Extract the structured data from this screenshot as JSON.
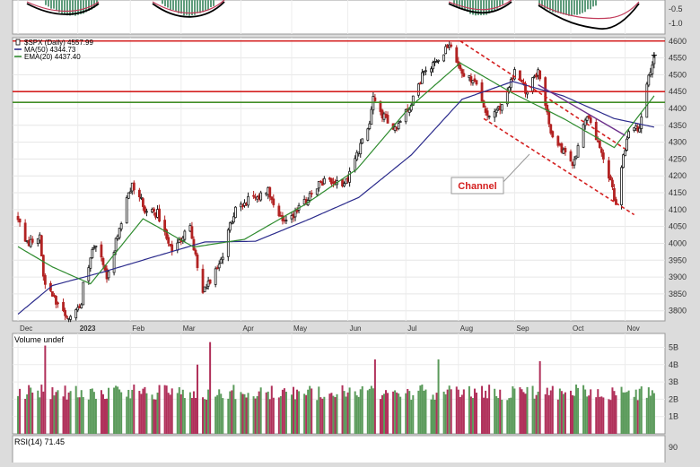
{
  "chart_data": {
    "type": "candlestick",
    "title": "$SPX (Daily) 4557.99",
    "price_axis": {
      "ticks": [
        3800,
        3850,
        3900,
        3950,
        4000,
        4050,
        4100,
        4150,
        4200,
        4250,
        4300,
        4350,
        4400,
        4450,
        4500,
        4550,
        4600
      ],
      "range": [
        3770,
        4610
      ]
    },
    "months": [
      {
        "label": "Dec",
        "date": "2022-12-01"
      },
      {
        "label": "2023",
        "date": "2023-01-03",
        "bold": true
      },
      {
        "label": "Feb",
        "date": "2023-02-01"
      },
      {
        "label": "Mar",
        "date": "2023-03-01"
      },
      {
        "label": "Apr",
        "date": "2023-04-03"
      },
      {
        "label": "May",
        "date": "2023-05-01"
      },
      {
        "label": "Jun",
        "date": "2023-06-01"
      },
      {
        "label": "Jul",
        "date": "2023-07-03"
      },
      {
        "label": "Aug",
        "date": "2023-08-01"
      },
      {
        "label": "Sep",
        "date": "2023-09-01"
      },
      {
        "label": "Oct",
        "date": "2023-10-02"
      },
      {
        "label": "Nov",
        "date": "2023-11-01"
      }
    ],
    "legend": [
      {
        "text": "$SPX (Daily) 4557.99",
        "color": "#000000",
        "swatch": "candle"
      },
      {
        "text": "MA(50) 4344.73",
        "color": "#2b2b8c",
        "swatch": "line"
      },
      {
        "text": "EMA(20) 4437.40",
        "color": "#2e8b2e",
        "swatch": "line"
      }
    ],
    "series": [
      {
        "name": "$SPX (Daily)",
        "kind": "price",
        "points": [
          {
            "x": "2022-12-01",
            "y": 4076
          },
          {
            "x": "2022-12-05",
            "y": 4000
          },
          {
            "x": "2022-12-13",
            "y": 4020
          },
          {
            "x": "2022-12-15",
            "y": 3900
          },
          {
            "x": "2022-12-22",
            "y": 3822
          },
          {
            "x": "2022-12-28",
            "y": 3783
          },
          {
            "x": "2023-01-05",
            "y": 3808
          },
          {
            "x": "2023-01-06",
            "y": 3895
          },
          {
            "x": "2023-01-13",
            "y": 3999
          },
          {
            "x": "2023-01-19",
            "y": 3898
          },
          {
            "x": "2023-01-27",
            "y": 4070
          },
          {
            "x": "2023-02-02",
            "y": 4179
          },
          {
            "x": "2023-02-10",
            "y": 4090
          },
          {
            "x": "2023-02-16",
            "y": 4090
          },
          {
            "x": "2023-02-24",
            "y": 3970
          },
          {
            "x": "2023-03-06",
            "y": 4048
          },
          {
            "x": "2023-03-13",
            "y": 3855
          },
          {
            "x": "2023-03-23",
            "y": 3950
          },
          {
            "x": "2023-03-31",
            "y": 4109
          },
          {
            "x": "2023-04-18",
            "y": 4154
          },
          {
            "x": "2023-04-25",
            "y": 4071
          },
          {
            "x": "2023-05-03",
            "y": 4090
          },
          {
            "x": "2023-05-19",
            "y": 4191
          },
          {
            "x": "2023-05-31",
            "y": 4179
          },
          {
            "x": "2023-06-12",
            "y": 4338
          },
          {
            "x": "2023-06-15",
            "y": 4425
          },
          {
            "x": "2023-06-26",
            "y": 4328
          },
          {
            "x": "2023-07-06",
            "y": 4411
          },
          {
            "x": "2023-07-13",
            "y": 4510
          },
          {
            "x": "2023-07-20",
            "y": 4534
          },
          {
            "x": "2023-07-27",
            "y": 4590
          },
          {
            "x": "2023-08-02",
            "y": 4513
          },
          {
            "x": "2023-08-11",
            "y": 4464
          },
          {
            "x": "2023-08-18",
            "y": 4370
          },
          {
            "x": "2023-08-25",
            "y": 4405
          },
          {
            "x": "2023-09-01",
            "y": 4515
          },
          {
            "x": "2023-09-07",
            "y": 4451
          },
          {
            "x": "2023-09-14",
            "y": 4505
          },
          {
            "x": "2023-09-21",
            "y": 4330
          },
          {
            "x": "2023-09-27",
            "y": 4274
          },
          {
            "x": "2023-10-03",
            "y": 4229
          },
          {
            "x": "2023-10-11",
            "y": 4377
          },
          {
            "x": "2023-10-19",
            "y": 4278
          },
          {
            "x": "2023-10-27",
            "y": 4117
          },
          {
            "x": "2023-11-02",
            "y": 4317
          },
          {
            "x": "2023-11-09",
            "y": 4347
          },
          {
            "x": "2023-11-14",
            "y": 4495
          },
          {
            "x": "2023-11-17",
            "y": 4557.99
          }
        ]
      },
      {
        "name": "MA(50)",
        "kind": "line",
        "color": "#2b2b8c",
        "points": [
          {
            "x": "2022-12-01",
            "y": 3790
          },
          {
            "x": "2022-12-20",
            "y": 3875
          },
          {
            "x": "2023-01-17",
            "y": 3915
          },
          {
            "x": "2023-02-14",
            "y": 3960
          },
          {
            "x": "2023-03-14",
            "y": 4004
          },
          {
            "x": "2023-04-11",
            "y": 4006
          },
          {
            "x": "2023-05-10",
            "y": 4070
          },
          {
            "x": "2023-06-07",
            "y": 4136
          },
          {
            "x": "2023-07-06",
            "y": 4262
          },
          {
            "x": "2023-08-03",
            "y": 4427
          },
          {
            "x": "2023-08-31",
            "y": 4480
          },
          {
            "x": "2023-09-28",
            "y": 4437
          },
          {
            "x": "2023-10-26",
            "y": 4370
          },
          {
            "x": "2023-11-17",
            "y": 4344.73
          }
        ]
      },
      {
        "name": "EMA(20)",
        "kind": "line",
        "color": "#2e8b2e",
        "points": [
          {
            "x": "2022-12-01",
            "y": 3990
          },
          {
            "x": "2022-12-20",
            "y": 3930
          },
          {
            "x": "2023-01-10",
            "y": 3880
          },
          {
            "x": "2023-02-08",
            "y": 4073
          },
          {
            "x": "2023-03-08",
            "y": 3989
          },
          {
            "x": "2023-04-05",
            "y": 4012
          },
          {
            "x": "2023-05-08",
            "y": 4114
          },
          {
            "x": "2023-06-06",
            "y": 4220
          },
          {
            "x": "2023-07-05",
            "y": 4403
          },
          {
            "x": "2023-08-02",
            "y": 4535
          },
          {
            "x": "2023-08-30",
            "y": 4448
          },
          {
            "x": "2023-09-28",
            "y": 4370
          },
          {
            "x": "2023-10-26",
            "y": 4284
          },
          {
            "x": "2023-11-17",
            "y": 4437.4
          }
        ]
      }
    ],
    "horizontal_lines": [
      {
        "y": 4600,
        "color": "#d42020"
      },
      {
        "y": 4450,
        "color": "#d42020"
      },
      {
        "y": 4418,
        "color": "#d42020"
      },
      {
        "y": 4418,
        "color": "#2aa02a"
      }
    ],
    "channel": {
      "label": "Channel",
      "color": "#d42020",
      "upper": [
        {
          "x": "2023-08-02",
          "y": 4600
        },
        {
          "x": "2023-11-01",
          "y": 4280
        }
      ],
      "lower": [
        {
          "x": "2023-08-15",
          "y": 4370
        },
        {
          "x": "2023-11-06",
          "y": 4085
        }
      ]
    },
    "trendline": {
      "color": "#6b2f8a",
      "points": [
        {
          "x": "2023-09-14",
          "y": 4470
        },
        {
          "x": "2023-11-01",
          "y": 4320
        }
      ]
    },
    "volume": {
      "title": "Volume undef",
      "ticks": [
        {
          "label": "5B",
          "value": 5
        },
        {
          "label": "4B",
          "value": 4
        },
        {
          "label": "3B",
          "value": 3
        },
        {
          "label": "2B",
          "value": 2
        },
        {
          "label": "1B",
          "value": 1
        }
      ],
      "range": [
        0,
        5.8
      ],
      "spikes": [
        {
          "x": "2022-12-16",
          "y": 5.1
        },
        {
          "x": "2023-03-10",
          "y": 4.0
        },
        {
          "x": "2023-03-17",
          "y": 5.3
        },
        {
          "x": "2023-06-16",
          "y": 4.3
        },
        {
          "x": "2023-07-21",
          "y": 4.3
        },
        {
          "x": "2023-09-15",
          "y": 4.2
        }
      ],
      "baseline_billions": 2.4
    },
    "rsi": {
      "title": "RSI(14) 71.45",
      "ticks": [
        {
          "label": "90",
          "value": 90
        }
      ]
    },
    "top_panel": {
      "ticks": [
        {
          "label": "-0.5",
          "value": -0.5
        },
        {
          "label": "-1.0",
          "value": -1.0
        }
      ]
    }
  }
}
